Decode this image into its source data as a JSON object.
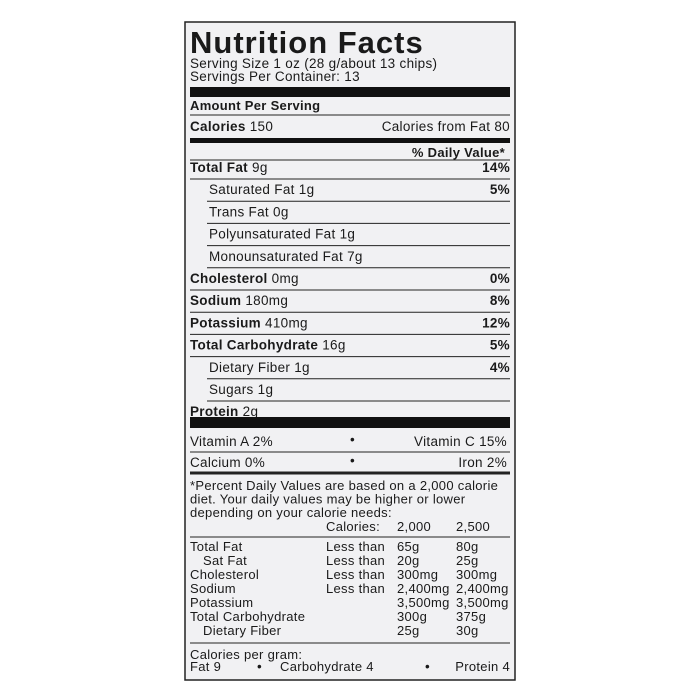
{
  "title": "Nutrition Facts",
  "serving_size": "Serving Size 1 oz (28 g/about 13 chips)",
  "servings_per_container": "Servings Per Container: 13",
  "amount_per_serving": "Amount Per Serving",
  "calories": {
    "label": "Calories",
    "value": "150",
    "from_fat": "Calories from Fat 80"
  },
  "daily_value_header": "% Daily Value*",
  "nutrients": [
    {
      "name": "Total Fat",
      "amount": "9g",
      "dv": "14%",
      "sub": [
        {
          "name": "Saturated Fat",
          "amount": "1g",
          "dv": "5%"
        },
        {
          "name": "Trans Fat",
          "amount": "0g"
        },
        {
          "name": "Polyunsaturated Fat",
          "amount": "1g"
        },
        {
          "name": "Monounsaturated Fat",
          "amount": "7g"
        }
      ]
    },
    {
      "name": "Cholesterol",
      "amount": "0mg",
      "dv": "0%"
    },
    {
      "name": "Sodium",
      "amount": "180mg",
      "dv": "8%"
    },
    {
      "name": "Potassium",
      "amount": "410mg",
      "dv": "12%"
    },
    {
      "name": "Total Carbohydrate",
      "amount": "16g",
      "dv": "5%",
      "sub": [
        {
          "name": "Dietary Fiber",
          "amount": "1g",
          "dv": "4%"
        },
        {
          "name": "Sugars",
          "amount": "1g"
        }
      ]
    },
    {
      "name": "Protein",
      "amount": "2g"
    }
  ],
  "vitamins": [
    [
      "Vitamin A 2%",
      "Vitamin C 15%"
    ],
    [
      "Calcium 0%",
      "Iron 2%"
    ]
  ],
  "footnote": [
    "*Percent Daily Values are based on a 2,000 calorie",
    "diet. Your daily values may be higher or lower",
    "depending on your calorie needs:"
  ],
  "daily_table": {
    "header": [
      "Calories:",
      "2,000",
      "2,500"
    ],
    "rows": [
      {
        "nutrient": "Total Fat",
        "limit": "Less than",
        "c2000": "65g",
        "c2500": "80g",
        "sub": [
          {
            "nutrient": "Sat Fat",
            "limit": "Less than",
            "c2000": "20g",
            "c2500": "25g"
          }
        ]
      },
      {
        "nutrient": "Cholesterol",
        "limit": "Less than",
        "c2000": "300mg",
        "c2500": "300mg"
      },
      {
        "nutrient": "Sodium",
        "limit": "Less than",
        "c2000": "2,400mg",
        "c2500": "2,400mg"
      },
      {
        "nutrient": "Potassium",
        "limit": null,
        "c2000": "3,500mg",
        "c2500": "3,500mg"
      },
      {
        "nutrient": "Total Carbohydrate",
        "limit": null,
        "c2000": "300g",
        "c2500": "375g",
        "sub": [
          {
            "nutrient": "Dietary Fiber",
            "limit": null,
            "c2000": "25g",
            "c2500": "30g"
          }
        ]
      }
    ]
  },
  "calories_per_gram": {
    "label": "Calories per gram:",
    "items": [
      "Fat 9",
      "Carbohydrate 4",
      "Protein 4"
    ]
  }
}
